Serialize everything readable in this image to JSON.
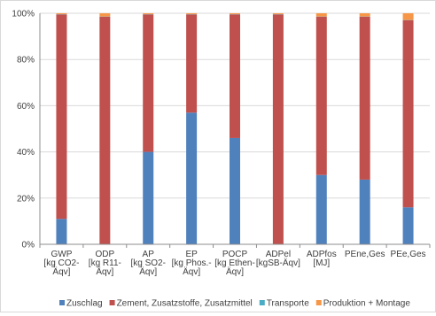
{
  "chart_data": {
    "type": "bar",
    "stacked": true,
    "normalized": true,
    "categories": [
      [
        "GWP",
        "[kg CO2-",
        "Äqv]"
      ],
      [
        "ODP",
        "[kg R11-",
        "Äqv]"
      ],
      [
        "AP",
        "[kg SO2-",
        "Äqv]"
      ],
      [
        "EP",
        "[kg Phos.-",
        "Äqv]"
      ],
      [
        "POCP",
        "[kg Ethen-",
        "Äqv]"
      ],
      [
        "ADPel",
        "[kgSB-Äqv]"
      ],
      [
        "ADPfos",
        "[MJ]"
      ],
      [
        "PEne,Ges"
      ],
      [
        "PEe,Ges"
      ]
    ],
    "series": [
      {
        "name": "Zuschlag",
        "color": "#4F81BD",
        "values": [
          11,
          0,
          40,
          57,
          46,
          0,
          30,
          28,
          16
        ]
      },
      {
        "name": "Zement, Zusatzstoffe, Zusatzmittel",
        "color": "#C0504D",
        "values": [
          88.5,
          98.5,
          59.5,
          42.5,
          53.5,
          99.5,
          68.5,
          70.5,
          81
        ]
      },
      {
        "name": "Transporte",
        "color": "#4BACC6",
        "values": [
          0.1,
          0.1,
          0.1,
          0.1,
          0.1,
          0.1,
          0.1,
          0.1,
          0.1
        ]
      },
      {
        "name": "Produktion + Montage",
        "color": "#F79646",
        "values": [
          0.4,
          1.4,
          0.4,
          0.4,
          0.4,
          0.4,
          1.4,
          1.4,
          2.9
        ]
      }
    ],
    "y_ticks": [
      "0%",
      "20%",
      "40%",
      "60%",
      "80%",
      "100%"
    ],
    "ylim": [
      0,
      100
    ],
    "grid": true,
    "legend_position": "bottom",
    "title": "",
    "xlabel": "",
    "ylabel": ""
  }
}
